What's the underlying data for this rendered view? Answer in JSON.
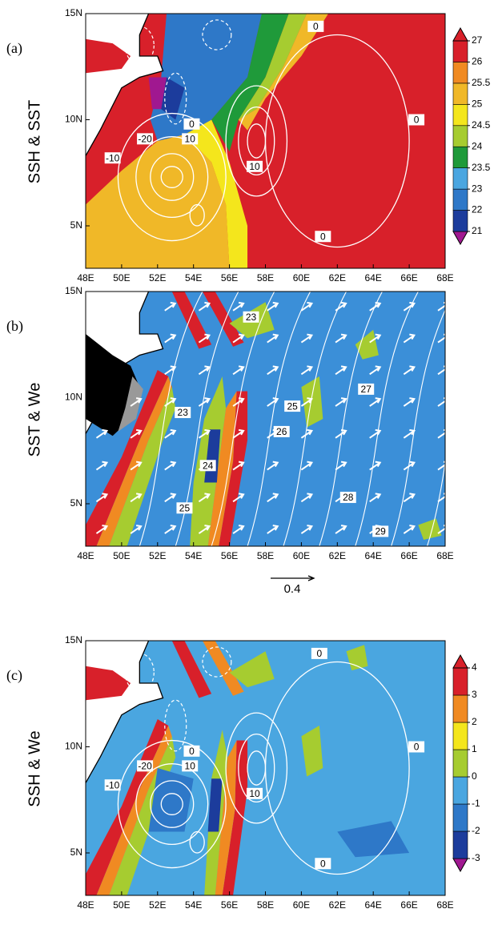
{
  "chart_data": [
    {
      "type": "contour-map",
      "panel_label": "(a)",
      "ylabel": "SSH & SST",
      "xlim": [
        48,
        68
      ],
      "ylim": [
        3,
        15
      ],
      "xticks": [
        {
          "value": 48,
          "label": "48E"
        },
        {
          "value": 50,
          "label": "50E"
        },
        {
          "value": 52,
          "label": "52E"
        },
        {
          "value": 54,
          "label": "54E"
        },
        {
          "value": 56,
          "label": "56E"
        },
        {
          "value": 58,
          "label": "58E"
        },
        {
          "value": 60,
          "label": "60E"
        },
        {
          "value": 62,
          "label": "62E"
        },
        {
          "value": 64,
          "label": "64E"
        },
        {
          "value": 66,
          "label": "66E"
        },
        {
          "value": 68,
          "label": "68E"
        }
      ],
      "yticks": [
        {
          "value": 5,
          "label": "5N"
        },
        {
          "value": 10,
          "label": "10N"
        },
        {
          "value": 15,
          "label": "15N"
        }
      ],
      "colorbar": {
        "levels": [
          21,
          22,
          23,
          23.5,
          24,
          24.5,
          25,
          25.5,
          26,
          27
        ],
        "colors": [
          "#a01890",
          "#1c3c9c",
          "#2e78c8",
          "#4aa6e0",
          "#1f9a3a",
          "#a6cc30",
          "#f4e61c",
          "#f0b828",
          "#f08a22",
          "#d8202a",
          "#d8202a"
        ]
      },
      "contour_labels": [
        0,
        0,
        0,
        -20,
        10,
        -10,
        10,
        0
      ]
    },
    {
      "type": "contour-map",
      "panel_label": "(b)",
      "ylabel": "SST & We",
      "xlim": [
        48,
        68
      ],
      "ylim": [
        3,
        15
      ],
      "xticks": [
        {
          "value": 48,
          "label": "48E"
        },
        {
          "value": 50,
          "label": "50E"
        },
        {
          "value": 52,
          "label": "52E"
        },
        {
          "value": 54,
          "label": "54E"
        },
        {
          "value": 56,
          "label": "56E"
        },
        {
          "value": 58,
          "label": "58E"
        },
        {
          "value": 60,
          "label": "60E"
        },
        {
          "value": 62,
          "label": "62E"
        },
        {
          "value": 64,
          "label": "64E"
        },
        {
          "value": 66,
          "label": "66E"
        },
        {
          "value": 68,
          "label": "68E"
        }
      ],
      "yticks": [
        {
          "value": 5,
          "label": "5N"
        },
        {
          "value": 10,
          "label": "10N"
        },
        {
          "value": 15,
          "label": "15N"
        }
      ],
      "contour_labels": [
        23,
        25,
        27,
        23,
        26,
        24,
        25,
        28,
        29
      ],
      "reference_vector": 0.4
    },
    {
      "type": "contour-map",
      "panel_label": "(c)",
      "ylabel": "SSH & We",
      "xlim": [
        48,
        68
      ],
      "ylim": [
        3,
        15
      ],
      "xticks": [
        {
          "value": 48,
          "label": "48E"
        },
        {
          "value": 50,
          "label": "50E"
        },
        {
          "value": 52,
          "label": "52E"
        },
        {
          "value": 54,
          "label": "54E"
        },
        {
          "value": 56,
          "label": "56E"
        },
        {
          "value": 58,
          "label": "58E"
        },
        {
          "value": 60,
          "label": "60E"
        },
        {
          "value": 62,
          "label": "62E"
        },
        {
          "value": 64,
          "label": "64E"
        },
        {
          "value": 66,
          "label": "66E"
        },
        {
          "value": 68,
          "label": "68E"
        }
      ],
      "yticks": [
        {
          "value": 5,
          "label": "5N"
        },
        {
          "value": 10,
          "label": "10N"
        },
        {
          "value": 15,
          "label": "15N"
        }
      ],
      "colorbar": {
        "levels": [
          -3,
          -2,
          -1,
          0,
          1,
          2,
          3,
          4
        ],
        "colors": [
          "#a01890",
          "#1c3c9c",
          "#2e78c8",
          "#4aa6e0",
          "#a6cc30",
          "#f4e61c",
          "#f08a22",
          "#d8202a",
          "#d8202a"
        ]
      },
      "contour_labels": [
        0,
        0,
        -20,
        10,
        -10,
        10,
        0,
        0
      ]
    }
  ]
}
